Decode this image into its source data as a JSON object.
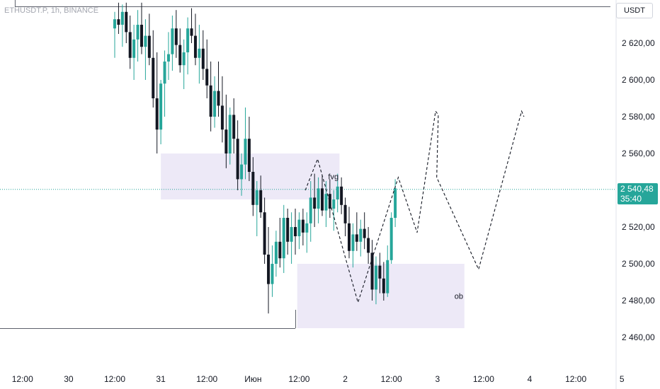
{
  "header": {
    "symbol": "ETHUSDT.P, 1h, BINANCE",
    "currency": "USDT"
  },
  "last_price": {
    "value": "2 540,48",
    "countdown": "35:40",
    "color": "#26a69a"
  },
  "colors": {
    "up": "#26a69a",
    "down": "#131722",
    "zone": "#ede9f7",
    "grid": "#e9ebef"
  },
  "chart_data": {
    "type": "candlestick",
    "title": "",
    "xlabel": "",
    "ylabel": "",
    "ylim": [
      2452,
      2643
    ],
    "y_ticks": [
      {
        "value": 2460,
        "label": "2 460,00"
      },
      {
        "value": 2480,
        "label": "2 480,00"
      },
      {
        "value": 2500,
        "label": "2 500,00"
      },
      {
        "value": 2520,
        "label": "2 520,00"
      },
      {
        "value": 2540,
        "label": "2 540,00"
      },
      {
        "value": 2560,
        "label": "2 560,00"
      },
      {
        "value": 2580,
        "label": "2 580,00"
      },
      {
        "value": 2600,
        "label": "2 600,00"
      },
      {
        "value": 2620,
        "label": "2 620,00"
      }
    ],
    "x_ticks": [
      {
        "bar": -24,
        "label": "12:00"
      },
      {
        "bar": -12,
        "label": "30"
      },
      {
        "bar": 0,
        "label": "12:00"
      },
      {
        "bar": 12,
        "label": "31"
      },
      {
        "bar": 24,
        "label": "12:00"
      },
      {
        "bar": 36,
        "label": "Июн"
      },
      {
        "bar": 48,
        "label": "12:00"
      },
      {
        "bar": 60,
        "label": "2"
      },
      {
        "bar": 72,
        "label": "12:00"
      },
      {
        "bar": 84,
        "label": "3"
      },
      {
        "bar": 96,
        "label": "12:00"
      },
      {
        "bar": 108,
        "label": "4"
      },
      {
        "bar": 120,
        "label": "12:00"
      },
      {
        "bar": 132,
        "label": "5"
      }
    ],
    "candles": [
      [
        2628,
        2637,
        2612,
        2633
      ],
      [
        2633,
        2642,
        2625,
        2630
      ],
      [
        2630,
        2641,
        2618,
        2637
      ],
      [
        2637,
        2642,
        2620,
        2626
      ],
      [
        2626,
        2635,
        2606,
        2612
      ],
      [
        2612,
        2630,
        2600,
        2622
      ],
      [
        2622,
        2638,
        2610,
        2630
      ],
      [
        2630,
        2642,
        2614,
        2618
      ],
      [
        2618,
        2633,
        2600,
        2624
      ],
      [
        2624,
        2636,
        2608,
        2612
      ],
      [
        2612,
        2627,
        2585,
        2590
      ],
      [
        2590,
        2615,
        2560,
        2573
      ],
      [
        2573,
        2600,
        2565,
        2598
      ],
      [
        2598,
        2616,
        2580,
        2610
      ],
      [
        2610,
        2626,
        2600,
        2614
      ],
      [
        2614,
        2635,
        2605,
        2628
      ],
      [
        2628,
        2638,
        2612,
        2619
      ],
      [
        2619,
        2628,
        2604,
        2608
      ],
      [
        2608,
        2622,
        2595,
        2615
      ],
      [
        2615,
        2634,
        2603,
        2628
      ],
      [
        2628,
        2639,
        2620,
        2624
      ],
      [
        2624,
        2636,
        2608,
        2612
      ],
      [
        2612,
        2630,
        2598,
        2617
      ],
      [
        2617,
        2627,
        2600,
        2606
      ],
      [
        2606,
        2622,
        2590,
        2597
      ],
      [
        2597,
        2610,
        2572,
        2580
      ],
      [
        2580,
        2602,
        2574,
        2594
      ],
      [
        2594,
        2610,
        2580,
        2586
      ],
      [
        2586,
        2602,
        2566,
        2573
      ],
      [
        2573,
        2592,
        2552,
        2560
      ],
      [
        2560,
        2585,
        2554,
        2581
      ],
      [
        2581,
        2590,
        2560,
        2568
      ],
      [
        2568,
        2578,
        2540,
        2546
      ],
      [
        2546,
        2560,
        2537,
        2554
      ],
      [
        2554,
        2585,
        2546,
        2568
      ],
      [
        2568,
        2580,
        2545,
        2550
      ],
      [
        2550,
        2558,
        2526,
        2532
      ],
      [
        2532,
        2545,
        2515,
        2540
      ],
      [
        2540,
        2548,
        2525,
        2528
      ],
      [
        2528,
        2536,
        2500,
        2505
      ],
      [
        2505,
        2520,
        2473,
        2489
      ],
      [
        2489,
        2510,
        2482,
        2500
      ],
      [
        2500,
        2518,
        2493,
        2512
      ],
      [
        2512,
        2525,
        2498,
        2503
      ],
      [
        2503,
        2532,
        2495,
        2525
      ],
      [
        2525,
        2530,
        2505,
        2512
      ],
      [
        2512,
        2528,
        2500,
        2520
      ],
      [
        2520,
        2530,
        2505,
        2515
      ],
      [
        2515,
        2528,
        2508,
        2524
      ],
      [
        2524,
        2530,
        2510,
        2517
      ],
      [
        2517,
        2528,
        2506,
        2522
      ],
      [
        2522,
        2545,
        2512,
        2536
      ],
      [
        2536,
        2549,
        2520,
        2530
      ],
      [
        2530,
        2547,
        2522,
        2541
      ],
      [
        2541,
        2548,
        2526,
        2529
      ],
      [
        2529,
        2545,
        2520,
        2538
      ],
      [
        2538,
        2546,
        2525,
        2530
      ],
      [
        2530,
        2540,
        2518,
        2535
      ],
      [
        2535,
        2549,
        2528,
        2542
      ],
      [
        2542,
        2547,
        2527,
        2532
      ],
      [
        2532,
        2536,
        2515,
        2522
      ],
      [
        2522,
        2531,
        2503,
        2507
      ],
      [
        2507,
        2522,
        2498,
        2516
      ],
      [
        2516,
        2528,
        2507,
        2512
      ],
      [
        2512,
        2524,
        2504,
        2519
      ],
      [
        2519,
        2528,
        2508,
        2514
      ],
      [
        2514,
        2520,
        2500,
        2506
      ],
      [
        2506,
        2513,
        2480,
        2486
      ],
      [
        2486,
        2504,
        2478,
        2499
      ],
      [
        2499,
        2506,
        2484,
        2492
      ],
      [
        2492,
        2501,
        2480,
        2484
      ],
      [
        2484,
        2510,
        2482,
        2502
      ],
      [
        2502,
        2528,
        2500,
        2525
      ],
      [
        2525,
        2546,
        2520,
        2541
      ]
    ],
    "zones": [
      {
        "label": "fvg",
        "from_bar": 12,
        "to_bar": 58.5,
        "low": 2535,
        "high": 2560
      },
      {
        "label": "ob",
        "from_bar": 47.5,
        "to_bar": 91,
        "low": 2465,
        "high": 2500
      }
    ],
    "lines": [
      {
        "value": 2640,
        "from_bar": -26,
        "to_bar": 129
      },
      {
        "value": 2465,
        "from_bar": -43,
        "to_bar": 47
      }
    ],
    "current_price": 2540.48,
    "projection": [
      [
        49.6,
        2540
      ],
      [
        52.8,
        2557
      ],
      [
        63.3,
        2479
      ],
      [
        73.8,
        2547
      ],
      [
        78.7,
        2517
      ],
      [
        83.5,
        2583
      ],
      [
        84.2,
        2581
      ],
      [
        83.8,
        2547
      ],
      [
        94.7,
        2497
      ],
      [
        105.9,
        2583
      ],
      [
        106.5,
        2580
      ]
    ]
  }
}
